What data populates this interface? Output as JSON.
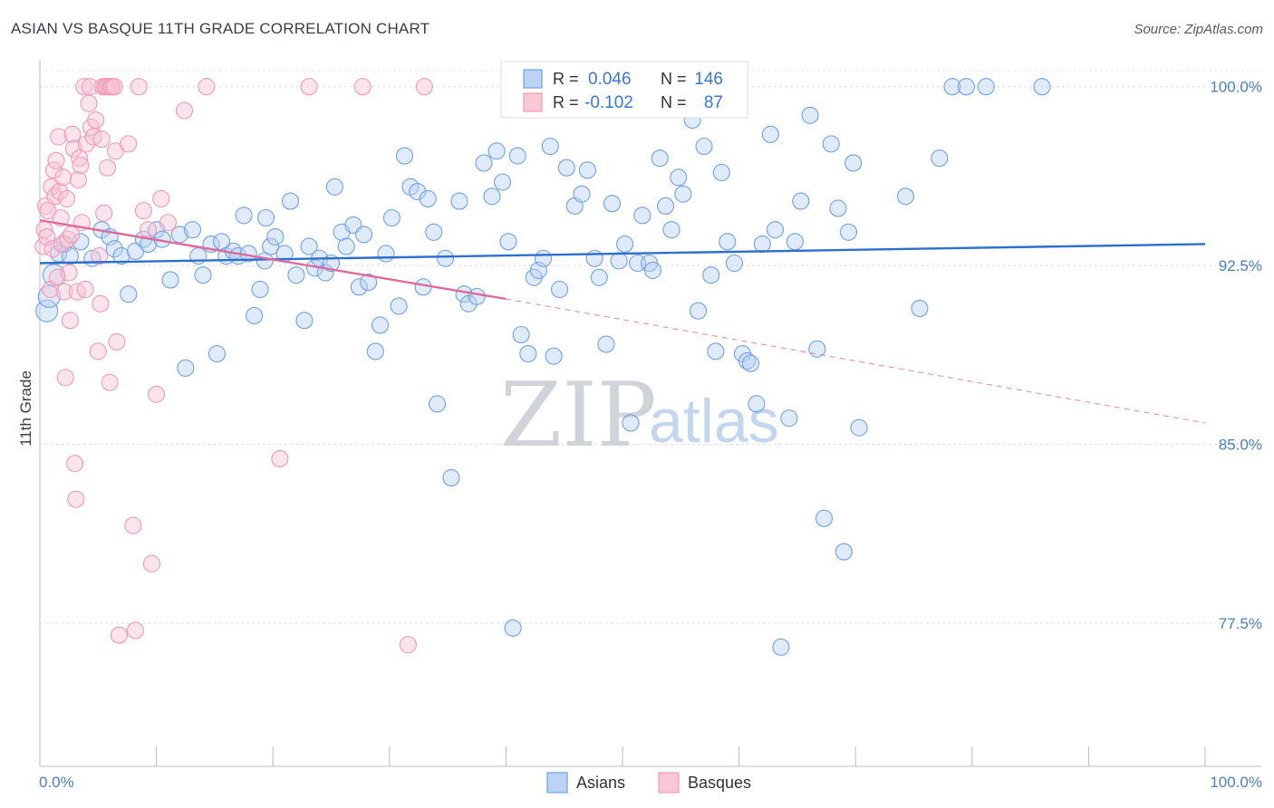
{
  "header": {
    "title": "ASIAN VS BASQUE 11TH GRADE CORRELATION CHART",
    "source": "Source: ZipAtlas.com"
  },
  "watermark": {
    "zip": "ZIP",
    "atlas": "atlas"
  },
  "legend": {
    "rows": [
      {
        "r_label": "R =",
        "r_value": "0.046",
        "n_label": "N =",
        "n_value": "146",
        "color": "#6fa1e6"
      },
      {
        "r_label": "R =",
        "r_value": "-0.102",
        "n_label": "N =",
        "n_value": "87",
        "color": "#f199b4"
      }
    ]
  },
  "chart_data": {
    "type": "scatter",
    "title": "ASIAN VS BASQUE 11TH GRADE CORRELATION CHART",
    "ylabel": "11th Grade",
    "xlabel": "",
    "xlim": [
      0,
      100
    ],
    "ylim": [
      71.5,
      100.9
    ],
    "x_tick_labels": [
      "0.0%",
      "100.0%"
    ],
    "y_ticks": [
      77.5,
      85.0,
      92.5,
      100.0
    ],
    "y_tick_labels": [
      "77.5%",
      "85.0%",
      "92.5%",
      "100.0%"
    ],
    "grid": "horizontal dashed",
    "legend_position": "top-center",
    "series": [
      {
        "name": "Asians",
        "color": "#6fa1e6",
        "line_color": "#2c6fcf",
        "trend": {
          "x": [
            0,
            100
          ],
          "y": [
            92.6,
            93.4
          ],
          "style": "solid"
        },
        "points": [
          [
            0.6,
            90.6
          ],
          [
            0.8,
            91.2
          ],
          [
            1.2,
            92.1
          ],
          [
            1.6,
            93.0
          ],
          [
            2.1,
            93.4
          ],
          [
            2.6,
            92.9
          ],
          [
            3.5,
            93.5
          ],
          [
            4.5,
            92.8
          ],
          [
            5.3,
            94.0
          ],
          [
            6.0,
            93.7
          ],
          [
            6.4,
            93.2
          ],
          [
            7.0,
            92.9
          ],
          [
            7.6,
            91.3
          ],
          [
            8.2,
            93.1
          ],
          [
            8.9,
            93.6
          ],
          [
            9.3,
            93.4
          ],
          [
            10.0,
            94.0
          ],
          [
            10.5,
            93.6
          ],
          [
            11.2,
            91.9
          ],
          [
            12.0,
            93.8
          ],
          [
            12.5,
            88.2
          ],
          [
            13.1,
            94.0
          ],
          [
            13.6,
            92.9
          ],
          [
            14.0,
            92.1
          ],
          [
            14.7,
            93.4
          ],
          [
            15.2,
            88.8
          ],
          [
            15.6,
            93.5
          ],
          [
            16.0,
            92.9
          ],
          [
            16.6,
            93.1
          ],
          [
            17.0,
            92.9
          ],
          [
            17.5,
            94.6
          ],
          [
            17.9,
            93.0
          ],
          [
            18.4,
            90.4
          ],
          [
            18.9,
            91.5
          ],
          [
            19.3,
            92.7
          ],
          [
            19.4,
            94.5
          ],
          [
            19.8,
            93.3
          ],
          [
            20.2,
            93.7
          ],
          [
            21.0,
            93.0
          ],
          [
            21.5,
            95.2
          ],
          [
            22.0,
            92.1
          ],
          [
            22.7,
            90.2
          ],
          [
            23.1,
            93.3
          ],
          [
            23.6,
            92.4
          ],
          [
            24.0,
            92.8
          ],
          [
            24.5,
            92.2
          ],
          [
            25.0,
            92.6
          ],
          [
            25.3,
            95.8
          ],
          [
            25.9,
            93.9
          ],
          [
            26.3,
            93.3
          ],
          [
            26.9,
            94.2
          ],
          [
            27.4,
            91.6
          ],
          [
            27.8,
            93.8
          ],
          [
            28.2,
            91.8
          ],
          [
            28.8,
            88.9
          ],
          [
            29.2,
            90.0
          ],
          [
            29.7,
            93.0
          ],
          [
            30.2,
            94.5
          ],
          [
            30.8,
            90.8
          ],
          [
            31.3,
            97.1
          ],
          [
            31.8,
            95.8
          ],
          [
            32.4,
            95.6
          ],
          [
            32.9,
            91.6
          ],
          [
            33.3,
            95.3
          ],
          [
            33.8,
            93.9
          ],
          [
            34.1,
            86.7
          ],
          [
            34.8,
            92.8
          ],
          [
            35.3,
            83.6
          ],
          [
            36.0,
            95.2
          ],
          [
            36.4,
            91.3
          ],
          [
            36.8,
            90.9
          ],
          [
            37.5,
            91.2
          ],
          [
            38.1,
            96.8
          ],
          [
            38.8,
            95.4
          ],
          [
            39.2,
            97.3
          ],
          [
            39.7,
            96.0
          ],
          [
            40.2,
            93.5
          ],
          [
            40.6,
            77.3
          ],
          [
            41.0,
            97.1
          ],
          [
            41.3,
            89.6
          ],
          [
            41.9,
            88.8
          ],
          [
            42.4,
            92.0
          ],
          [
            42.8,
            92.3
          ],
          [
            43.2,
            92.8
          ],
          [
            43.8,
            97.5
          ],
          [
            44.1,
            88.7
          ],
          [
            44.6,
            91.5
          ],
          [
            45.2,
            96.6
          ],
          [
            45.9,
            95.0
          ],
          [
            46.5,
            95.5
          ],
          [
            47.0,
            96.5
          ],
          [
            47.6,
            92.8
          ],
          [
            48.0,
            92.0
          ],
          [
            48.6,
            89.2
          ],
          [
            49.1,
            95.1
          ],
          [
            49.7,
            92.7
          ],
          [
            50.2,
            93.4
          ],
          [
            50.7,
            85.9
          ],
          [
            51.3,
            92.6
          ],
          [
            51.7,
            94.6
          ],
          [
            52.3,
            92.6
          ],
          [
            52.6,
            92.3
          ],
          [
            53.2,
            97.0
          ],
          [
            53.7,
            95.0
          ],
          [
            54.2,
            94.0
          ],
          [
            54.8,
            96.2
          ],
          [
            55.2,
            95.5
          ],
          [
            56.0,
            98.6
          ],
          [
            56.5,
            90.6
          ],
          [
            57.0,
            97.5
          ],
          [
            57.6,
            92.1
          ],
          [
            58.0,
            88.9
          ],
          [
            58.5,
            96.4
          ],
          [
            59.0,
            93.5
          ],
          [
            59.6,
            92.6
          ],
          [
            60.3,
            88.8
          ],
          [
            60.7,
            88.5
          ],
          [
            61.0,
            88.4
          ],
          [
            61.5,
            86.7
          ],
          [
            62.0,
            93.4
          ],
          [
            62.7,
            98.0
          ],
          [
            63.1,
            94.0
          ],
          [
            63.6,
            76.5
          ],
          [
            64.3,
            86.1
          ],
          [
            64.8,
            93.5
          ],
          [
            65.3,
            95.2
          ],
          [
            66.1,
            98.8
          ],
          [
            66.7,
            89.0
          ],
          [
            67.3,
            81.9
          ],
          [
            67.9,
            97.6
          ],
          [
            68.5,
            94.9
          ],
          [
            69.0,
            80.5
          ],
          [
            69.4,
            93.9
          ],
          [
            69.8,
            96.8
          ],
          [
            70.3,
            85.7
          ],
          [
            74.3,
            95.4
          ],
          [
            75.5,
            90.7
          ],
          [
            77.2,
            97.0
          ],
          [
            78.3,
            100.0
          ],
          [
            79.5,
            100.0
          ],
          [
            81.2,
            100.0
          ],
          [
            86.0,
            100.0
          ]
        ]
      },
      {
        "name": "Basques",
        "color": "#f199b4",
        "line_color": "#e0689a",
        "trend": {
          "x": [
            0,
            40
          ],
          "y": [
            94.4,
            91.1
          ],
          "style": "solid",
          "dashed_extension_to": {
            "x": 100,
            "y": 85.9
          }
        },
        "points": [
          [
            0.3,
            93.3
          ],
          [
            0.4,
            94.0
          ],
          [
            0.5,
            95.0
          ],
          [
            0.6,
            93.7
          ],
          [
            0.7,
            94.8
          ],
          [
            0.9,
            91.5
          ],
          [
            1.0,
            95.8
          ],
          [
            1.1,
            93.2
          ],
          [
            1.2,
            96.5
          ],
          [
            1.3,
            95.4
          ],
          [
            1.4,
            96.9
          ],
          [
            1.5,
            92.0
          ],
          [
            1.6,
            97.9
          ],
          [
            1.7,
            95.6
          ],
          [
            1.8,
            94.5
          ],
          [
            1.9,
            93.4
          ],
          [
            2.0,
            96.2
          ],
          [
            2.1,
            91.4
          ],
          [
            2.2,
            87.8
          ],
          [
            2.3,
            95.3
          ],
          [
            2.4,
            93.6
          ],
          [
            2.5,
            92.2
          ],
          [
            2.6,
            90.2
          ],
          [
            2.7,
            93.8
          ],
          [
            2.8,
            98.0
          ],
          [
            2.9,
            97.4
          ],
          [
            3.0,
            84.2
          ],
          [
            3.1,
            82.7
          ],
          [
            3.2,
            91.4
          ],
          [
            3.3,
            96.1
          ],
          [
            3.4,
            97.0
          ],
          [
            3.5,
            96.7
          ],
          [
            3.6,
            94.3
          ],
          [
            3.8,
            100.0
          ],
          [
            3.9,
            91.5
          ],
          [
            4.0,
            97.6
          ],
          [
            4.2,
            99.3
          ],
          [
            4.3,
            100.0
          ],
          [
            4.4,
            98.3
          ],
          [
            4.6,
            97.9
          ],
          [
            4.8,
            98.6
          ],
          [
            5.0,
            88.9
          ],
          [
            5.1,
            92.9
          ],
          [
            5.2,
            90.9
          ],
          [
            5.3,
            97.8
          ],
          [
            5.4,
            100.0
          ],
          [
            5.5,
            94.7
          ],
          [
            5.6,
            100.0
          ],
          [
            5.7,
            100.0
          ],
          [
            5.8,
            96.6
          ],
          [
            5.9,
            100.0
          ],
          [
            6.0,
            87.6
          ],
          [
            6.1,
            100.0
          ],
          [
            6.2,
            100.0
          ],
          [
            6.4,
            100.0
          ],
          [
            6.5,
            97.3
          ],
          [
            6.6,
            89.3
          ],
          [
            6.8,
            77.0
          ],
          [
            7.6,
            97.6
          ],
          [
            8.0,
            81.6
          ],
          [
            8.2,
            77.2
          ],
          [
            8.5,
            100.0
          ],
          [
            8.9,
            94.8
          ],
          [
            9.3,
            94.0
          ],
          [
            9.6,
            80.0
          ],
          [
            10.0,
            87.1
          ],
          [
            10.4,
            95.3
          ],
          [
            11.0,
            94.3
          ],
          [
            12.4,
            99.0
          ],
          [
            14.3,
            100.0
          ],
          [
            20.6,
            84.4
          ],
          [
            23.1,
            100.0
          ],
          [
            27.7,
            100.0
          ],
          [
            31.6,
            76.6
          ],
          [
            33.0,
            100.0
          ]
        ]
      }
    ]
  },
  "bottom_legend": {
    "items": [
      "Asians",
      "Basques"
    ]
  }
}
